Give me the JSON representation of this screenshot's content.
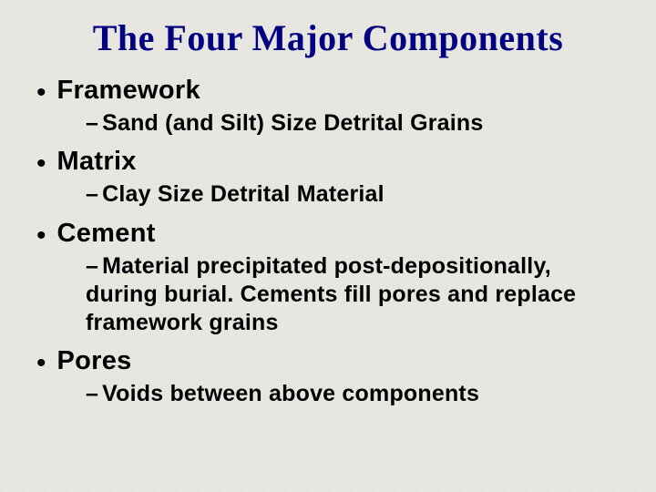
{
  "title": "The Four Major Components",
  "items": [
    {
      "heading": "Framework",
      "sub": "Sand (and Silt) Size Detrital Grains"
    },
    {
      "heading": "Matrix",
      "sub": "Clay Size Detrital Material"
    },
    {
      "heading": "Cement",
      "sub": "Material precipitated post-depositionally, during burial. Cements fill pores and replace framework grains"
    },
    {
      "heading": "Pores",
      "sub": "Voids between above components"
    }
  ],
  "colors": {
    "title": "#000080",
    "text": "#000000",
    "background": "#e8e6e0"
  },
  "typography": {
    "title_font": "Times New Roman",
    "title_size_pt": 30,
    "body_font": "Arial",
    "heading_size_pt": 22,
    "sub_size_pt": 19,
    "all_bold": true
  }
}
